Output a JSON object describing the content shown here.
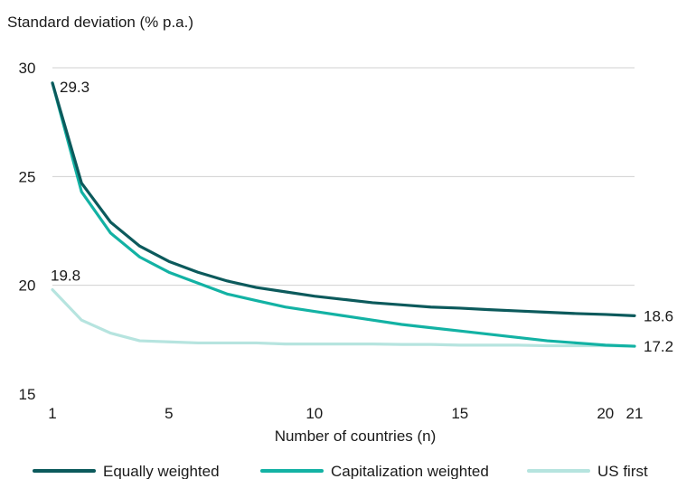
{
  "chart_data": {
    "type": "line",
    "ylabel": "Standard deviation (% p.a.)",
    "xlabel": "Number of countries (n)",
    "xlim": [
      1,
      21
    ],
    "ylim": [
      15,
      30
    ],
    "xticks": [
      1,
      5,
      10,
      15,
      20,
      21
    ],
    "yticks": [
      15,
      20,
      25,
      30
    ],
    "grid": "horizontal",
    "legend_position": "bottom",
    "x": [
      1,
      2,
      3,
      4,
      5,
      6,
      7,
      8,
      9,
      10,
      11,
      12,
      13,
      14,
      15,
      16,
      17,
      18,
      19,
      20,
      21
    ],
    "series": [
      {
        "name": "Equally weighted",
        "color": "#0c5a5c",
        "values": [
          29.3,
          24.7,
          22.9,
          21.8,
          21.1,
          20.6,
          20.2,
          19.9,
          19.7,
          19.5,
          19.35,
          19.2,
          19.1,
          19.0,
          18.95,
          18.88,
          18.82,
          18.76,
          18.7,
          18.66,
          18.6
        ]
      },
      {
        "name": "Capitalization weighted",
        "color": "#13b2a4",
        "values": [
          29.3,
          24.3,
          22.4,
          21.3,
          20.6,
          20.1,
          19.6,
          19.3,
          19.0,
          18.8,
          18.6,
          18.4,
          18.2,
          18.05,
          17.9,
          17.75,
          17.6,
          17.45,
          17.35,
          17.25,
          17.2
        ]
      },
      {
        "name": "US first",
        "color": "#b6e4df",
        "values": [
          19.8,
          18.4,
          17.8,
          17.45,
          17.4,
          17.35,
          17.35,
          17.35,
          17.3,
          17.3,
          17.3,
          17.3,
          17.28,
          17.28,
          17.25,
          17.25,
          17.25,
          17.22,
          17.22,
          17.22,
          17.2
        ]
      }
    ],
    "annotations": [
      {
        "text": "29.3",
        "x": 1,
        "y": 29.3,
        "side": "right"
      },
      {
        "text": "19.8",
        "x": 1,
        "y": 19.8,
        "side": "above"
      },
      {
        "text": "18.6",
        "x": 21,
        "y": 18.6,
        "side": "right"
      },
      {
        "text": "17.2",
        "x": 21,
        "y": 17.2,
        "side": "right"
      }
    ]
  }
}
